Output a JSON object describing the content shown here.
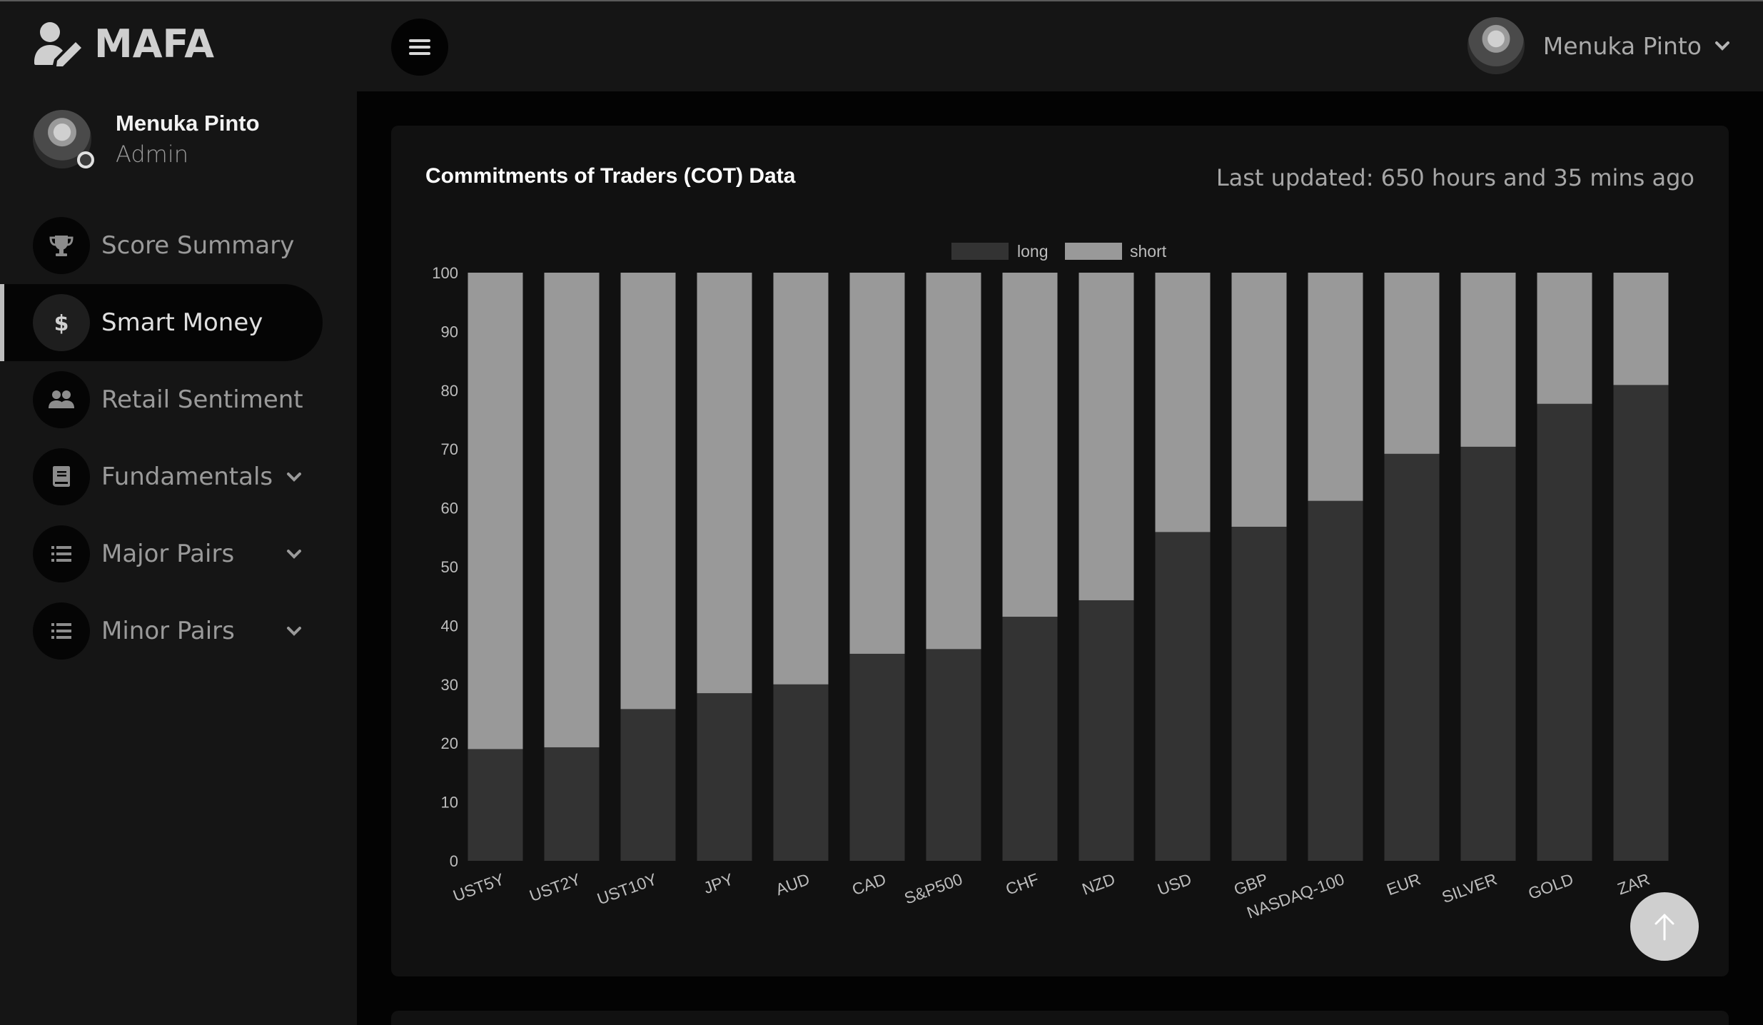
{
  "app": {
    "brand": "MAFA"
  },
  "header": {
    "user_name": "Menuka Pinto"
  },
  "sidebar": {
    "profile": {
      "name": "Menuka Pinto",
      "role": "Admin"
    },
    "items": [
      {
        "label": "Score Summary",
        "icon": "trophy-icon",
        "active": false,
        "has_submenu": false
      },
      {
        "label": "Smart Money",
        "icon": "dollar-icon",
        "active": true,
        "has_submenu": false
      },
      {
        "label": "Retail Sentiment",
        "icon": "users-icon",
        "active": false,
        "has_submenu": false
      },
      {
        "label": "Fundamentals",
        "icon": "book-icon",
        "active": false,
        "has_submenu": true
      },
      {
        "label": "Major Pairs",
        "icon": "list-icon",
        "active": false,
        "has_submenu": true
      },
      {
        "label": "Minor Pairs",
        "icon": "list-icon",
        "active": false,
        "has_submenu": true
      }
    ]
  },
  "card": {
    "title": "Commitments of Traders (COT) Data",
    "updated": "Last updated: 650 hours and 35 mins ago"
  },
  "colors": {
    "long": "#333333",
    "short": "#999999",
    "axis_text": "#bdbdbd"
  },
  "chart_data": {
    "type": "bar",
    "stacked": true,
    "categories": [
      "UST5Y",
      "UST2Y",
      "UST10Y",
      "JPY",
      "AUD",
      "CAD",
      "S&P500",
      "CHF",
      "NZD",
      "USD",
      "GBP",
      "NASDAQ-100",
      "EUR",
      "SILVER",
      "GOLD",
      "ZAR"
    ],
    "series": [
      {
        "name": "long",
        "values": [
          19,
          19.3,
          25.8,
          28.5,
          30,
          35.2,
          36,
          41.5,
          44.3,
          55.9,
          56.8,
          61.2,
          69.2,
          70.4,
          77.7,
          80.9
        ]
      },
      {
        "name": "short",
        "values": [
          81,
          80.7,
          74.2,
          71.5,
          70,
          64.8,
          64,
          58.5,
          55.7,
          44.1,
          43.2,
          38.8,
          30.8,
          29.6,
          22.3,
          19.1
        ]
      }
    ],
    "ylim": [
      0,
      100
    ],
    "yticks": [
      0,
      10,
      20,
      30,
      40,
      50,
      60,
      70,
      80,
      90,
      100
    ],
    "legend_position": "top-center",
    "grid": false
  }
}
